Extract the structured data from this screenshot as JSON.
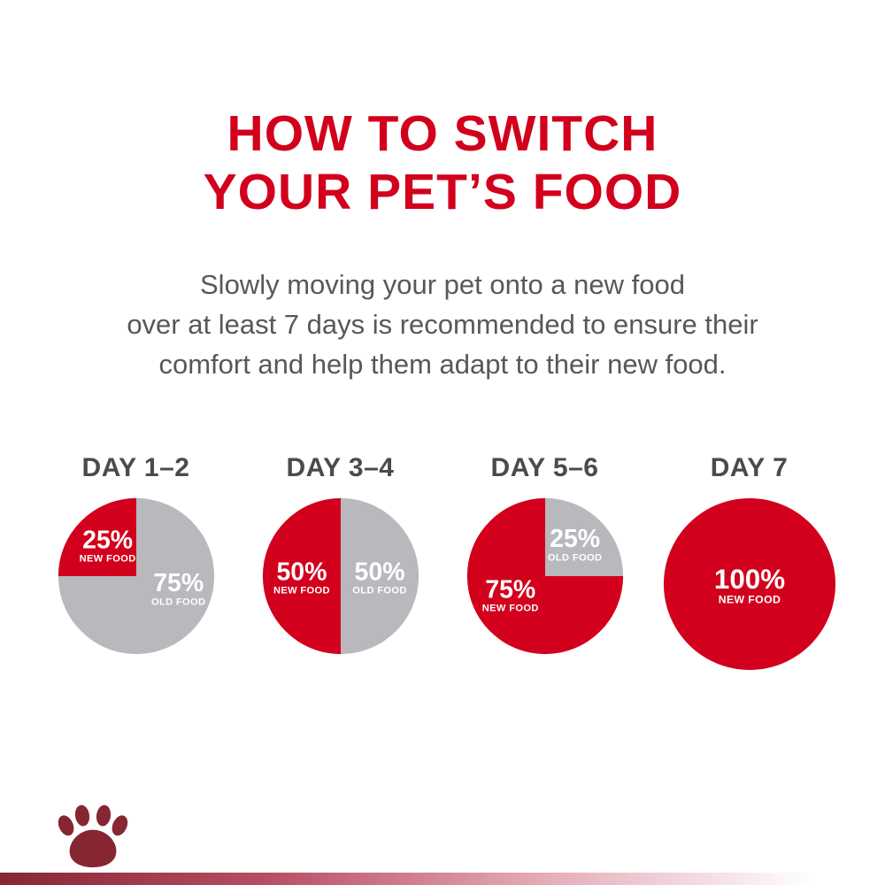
{
  "page": {
    "title_lines": [
      "HOW TO SWITCH",
      "YOUR PET’S FOOD"
    ],
    "subtitle_lines": [
      "Slowly moving your pet onto a new food",
      "over at least 7 days is recommended to ensure their",
      "comfort and help them adapt to their new food."
    ]
  },
  "colors": {
    "brand_red": "#d2001c",
    "pie_gray": "#b9b8bd",
    "text_gray": "#58585b",
    "day_label": "#4b4b4e",
    "logo_maroon": "#862633",
    "label_white": "#ffffff"
  },
  "chart_data": [
    {
      "type": "pie",
      "title": "DAY 1–2",
      "start_angle": 270,
      "size": 178,
      "slices": [
        {
          "label": "NEW FOOD",
          "pct_text": "25%",
          "value": 25,
          "color": "#d2001c",
          "label_angle": 318,
          "label_r": 0.55
        },
        {
          "label": "OLD FOOD",
          "pct_text": "75%",
          "value": 75,
          "color": "#b9b8bd",
          "label_angle": 105,
          "label_r": 0.56
        }
      ]
    },
    {
      "type": "pie",
      "title": "DAY 3–4",
      "start_angle": 180,
      "size": 178,
      "slices": [
        {
          "label": "NEW FOOD",
          "pct_text": "50%",
          "value": 50,
          "color": "#d2001c",
          "label_angle": 270,
          "label_r": 0.5
        },
        {
          "label": "OLD FOOD",
          "pct_text": "50%",
          "value": 50,
          "color": "#b9b8bd",
          "label_angle": 90,
          "label_r": 0.5
        }
      ]
    },
    {
      "type": "pie",
      "title": "DAY 5–6",
      "start_angle": 0,
      "size": 178,
      "slices": [
        {
          "label": "OLD FOOD",
          "pct_text": "25%",
          "value": 25,
          "color": "#b9b8bd",
          "label_angle": 42,
          "label_r": 0.57
        },
        {
          "label": "NEW FOOD",
          "pct_text": "75%",
          "value": 75,
          "color": "#d2001c",
          "label_angle": 243,
          "label_r": 0.5
        }
      ]
    },
    {
      "type": "pie",
      "title": "DAY 7",
      "start_angle": 0,
      "size": 196,
      "slices": [
        {
          "label": "NEW FOOD",
          "pct_text": "100%",
          "value": 100,
          "color": "#d2001c",
          "label_angle": 0,
          "label_r": 0
        }
      ]
    }
  ],
  "footer": {
    "logo": "royal-canin-paw-logo"
  }
}
